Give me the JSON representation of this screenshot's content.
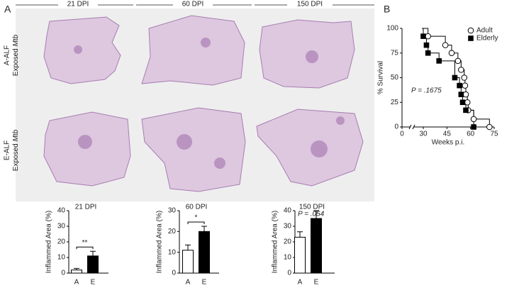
{
  "panel_labels": [
    "A",
    "B"
  ],
  "columns": [
    "21 DPI",
    "60 DPI",
    "150 DPI"
  ],
  "rows": [
    {
      "line1": "A-ALF",
      "line2": "Exposed",
      "italic": "Mtb"
    },
    {
      "line1": "E-ALF",
      "line2": "Exposed",
      "italic": "Mtb"
    }
  ],
  "chart_data": [
    {
      "type": "bar",
      "title": "21 DPI",
      "y_label": "Inflammed Area (%)",
      "categories": [
        "A",
        "E"
      ],
      "values": [
        2,
        11
      ],
      "errors": [
        1,
        3
      ],
      "colors": [
        "#ffffff",
        "#000000"
      ],
      "ylim": [
        0,
        40
      ],
      "yticks": [
        0,
        10,
        20,
        30,
        40
      ],
      "annotation": "**"
    },
    {
      "type": "bar",
      "title": "60 DPI",
      "y_label": "Inflammed Area (%)",
      "categories": [
        "A",
        "E"
      ],
      "values": [
        11,
        20
      ],
      "errors": [
        2.5,
        2.5
      ],
      "colors": [
        "#ffffff",
        "#000000"
      ],
      "ylim": [
        0,
        30
      ],
      "yticks": [
        0,
        10,
        20,
        30
      ],
      "annotation": "*"
    },
    {
      "type": "bar",
      "title": "150 DPI",
      "y_label": "Inflammed Area (%)",
      "categories": [
        "A",
        "E"
      ],
      "values": [
        23,
        35
      ],
      "errors": [
        3.5,
        5
      ],
      "colors": [
        "#ffffff",
        "#000000"
      ],
      "ylim": [
        0,
        40
      ],
      "yticks": [
        0,
        10,
        20,
        30,
        40
      ],
      "annotation": "P = .054"
    },
    {
      "type": "step",
      "y_label": "% Survival",
      "x_label": "Weeks p.i.",
      "annotation": "P = .1675",
      "xlim": [
        0,
        75
      ],
      "xticks": [
        0,
        30,
        45,
        60,
        75
      ],
      "axis_break": [
        0,
        30
      ],
      "ylim": [
        0,
        100
      ],
      "yticks": [
        0,
        25,
        50,
        75,
        100
      ],
      "legend": "top-right",
      "series": [
        {
          "name": "Adult",
          "marker": "open-circle",
          "x": [
            28,
            33,
            44,
            48,
            52,
            54,
            56,
            56.5,
            57,
            58,
            58.5,
            62,
            72
          ],
          "values": [
            100,
            92,
            83,
            75,
            67,
            58,
            50,
            42,
            33,
            25,
            17,
            8,
            0
          ]
        },
        {
          "name": "Elderly",
          "marker": "filled-square",
          "x": [
            28,
            30,
            32,
            33,
            40,
            50,
            53,
            54,
            55,
            57,
            62
          ],
          "values": [
            100,
            92,
            83,
            75,
            67,
            50,
            42,
            33,
            25,
            17,
            0
          ]
        }
      ]
    }
  ]
}
